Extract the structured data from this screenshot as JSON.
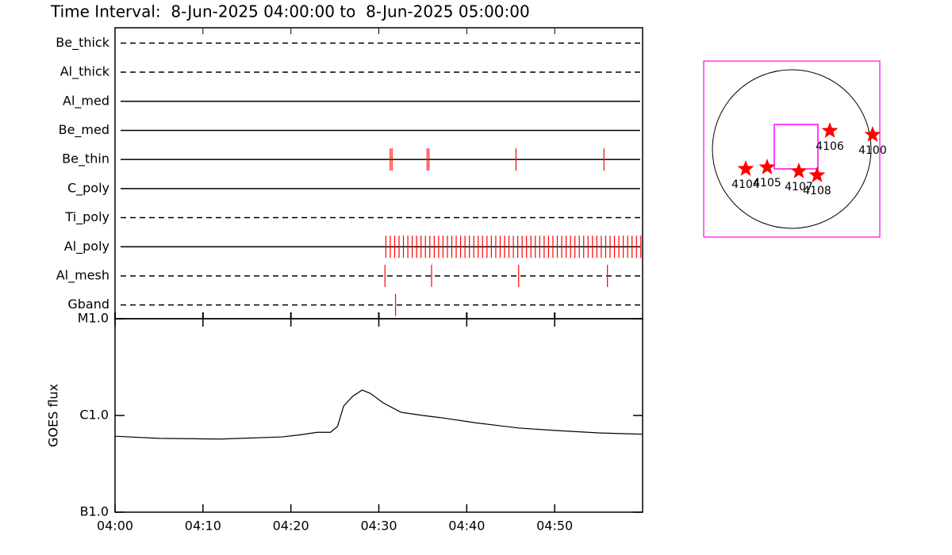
{
  "chart_data": [
    {
      "type": "timeline",
      "title": "Time Interval:  8-Jun-2025 04:00:00 to  8-Jun-2025 05:00:00",
      "xlim": [
        0,
        60
      ],
      "color": "#ff0000",
      "series": [
        {
          "name": "Be_thick",
          "style": "dashed",
          "values": []
        },
        {
          "name": "Al_thick",
          "style": "dashed",
          "values": []
        },
        {
          "name": "Al_med",
          "style": "solid",
          "values": []
        },
        {
          "name": "Be_med",
          "style": "solid",
          "values": []
        },
        {
          "name": "Be_thin",
          "style": "solid",
          "values": [
            31.3,
            31.5,
            35.5,
            35.7,
            45.6,
            55.6
          ]
        },
        {
          "name": "C_poly",
          "style": "solid",
          "values": []
        },
        {
          "name": "Ti_poly",
          "style": "dashed",
          "values": []
        },
        {
          "name": "Al_poly",
          "style": "solid",
          "values": [
            30.8,
            31.3,
            31.8,
            32.3,
            32.8,
            33.3,
            33.8,
            34.3,
            34.8,
            35.3,
            35.8,
            36.3,
            36.8,
            37.3,
            37.8,
            38.3,
            38.8,
            39.3,
            39.8,
            40.3,
            40.8,
            41.3,
            41.8,
            42.3,
            42.8,
            43.3,
            43.8,
            44.3,
            44.8,
            45.3,
            45.8,
            46.3,
            46.8,
            47.3,
            47.8,
            48.3,
            48.8,
            49.3,
            49.8,
            50.3,
            50.8,
            51.3,
            51.8,
            52.3,
            52.8,
            53.3,
            53.8,
            54.3,
            54.8,
            55.3,
            55.8,
            56.3,
            56.8,
            57.3,
            57.8,
            58.3,
            58.8,
            59.3,
            59.8
          ]
        },
        {
          "name": "Al_mesh",
          "style": "dashed",
          "values": [
            30.7,
            36.0,
            45.9,
            56.0
          ]
        },
        {
          "name": "Gband",
          "style": "dashed",
          "values": [
            31.9
          ]
        }
      ]
    },
    {
      "type": "line",
      "ylabel": "GOES flux",
      "log_scale": true,
      "color": "#000000",
      "x": [
        0,
        5,
        12,
        19,
        21,
        23,
        24.5,
        25.3,
        26,
        27,
        28.1,
        29,
        30.5,
        32.5,
        35,
        37,
        41,
        46,
        50,
        55,
        59.9
      ],
      "values": [
        6.1e-07,
        5.8e-07,
        5.7e-07,
        6e-07,
        6.3e-07,
        6.7e-07,
        6.7e-07,
        7.7e-07,
        1.25e-06,
        1.57e-06,
        1.83e-06,
        1.7e-06,
        1.35e-06,
        1.08e-06,
        1e-06,
        9.5e-07,
        8.4e-07,
        7.4e-07,
        7e-07,
        6.6e-07,
        6.4e-07
      ],
      "xlim": [
        0,
        60
      ],
      "xticks": [
        {
          "value": 0,
          "label": "04:00"
        },
        {
          "value": 10,
          "label": "04:10"
        },
        {
          "value": 20,
          "label": "04:20"
        },
        {
          "value": 30,
          "label": "04:30"
        },
        {
          "value": 40,
          "label": "04:40"
        },
        {
          "value": 50,
          "label": "04:50"
        }
      ],
      "ylim": [
        1e-07,
        1e-05
      ],
      "yticks": [
        {
          "value": 1e-07,
          "label": "B1.0"
        },
        {
          "value": 1e-06,
          "label": "C1.0"
        },
        {
          "value": 1e-05,
          "label": "M1.0"
        }
      ]
    },
    {
      "type": "scatter",
      "color": "#ff0000",
      "frame_color": "#ff00ff",
      "labels": [
        "4106",
        "4100",
        "4104",
        "4105",
        "4107",
        "4108"
      ],
      "x": [
        461,
        979,
        -557,
        -298,
        86,
        307
      ],
      "values": [
        221,
        173,
        -240,
        -221,
        -269,
        -317
      ],
      "xlim": [
        -1066,
        1066
      ],
      "ylim": [
        -1066,
        1066
      ]
    }
  ]
}
